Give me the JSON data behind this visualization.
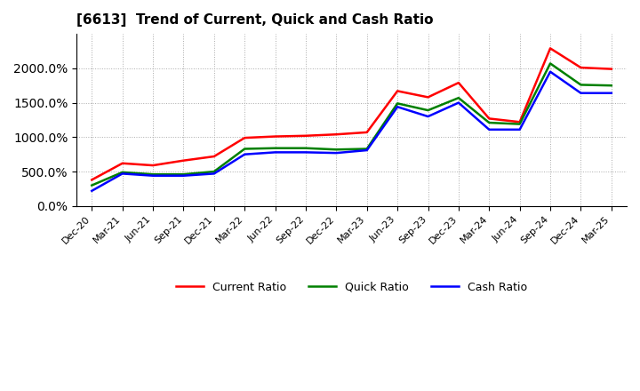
{
  "title": "[6613]  Trend of Current, Quick and Cash Ratio",
  "x_labels": [
    "Dec-20",
    "Mar-21",
    "Jun-21",
    "Sep-21",
    "Dec-21",
    "Mar-22",
    "Jun-22",
    "Sep-22",
    "Dec-22",
    "Mar-23",
    "Jun-23",
    "Sep-23",
    "Dec-23",
    "Mar-24",
    "Jun-24",
    "Sep-24",
    "Dec-24",
    "Mar-25"
  ],
  "current_ratio": [
    380,
    620,
    590,
    660,
    720,
    990,
    1010,
    1020,
    1040,
    1070,
    1670,
    1580,
    1790,
    1270,
    1220,
    2290,
    2010,
    1990
  ],
  "quick_ratio": [
    300,
    490,
    460,
    460,
    500,
    830,
    840,
    840,
    820,
    830,
    1490,
    1390,
    1570,
    1210,
    1190,
    2070,
    1760,
    1750
  ],
  "cash_ratio": [
    220,
    470,
    440,
    440,
    470,
    750,
    780,
    780,
    770,
    810,
    1440,
    1300,
    1500,
    1110,
    1110,
    1950,
    1640,
    1640
  ],
  "current_color": "#ff0000",
  "quick_color": "#008000",
  "cash_color": "#0000ff",
  "ylim": [
    0,
    2500
  ],
  "yticks": [
    0,
    500,
    1000,
    1500,
    2000
  ],
  "background_color": "#ffffff",
  "grid_color": "#aaaaaa",
  "legend_labels": [
    "Current Ratio",
    "Quick Ratio",
    "Cash Ratio"
  ]
}
